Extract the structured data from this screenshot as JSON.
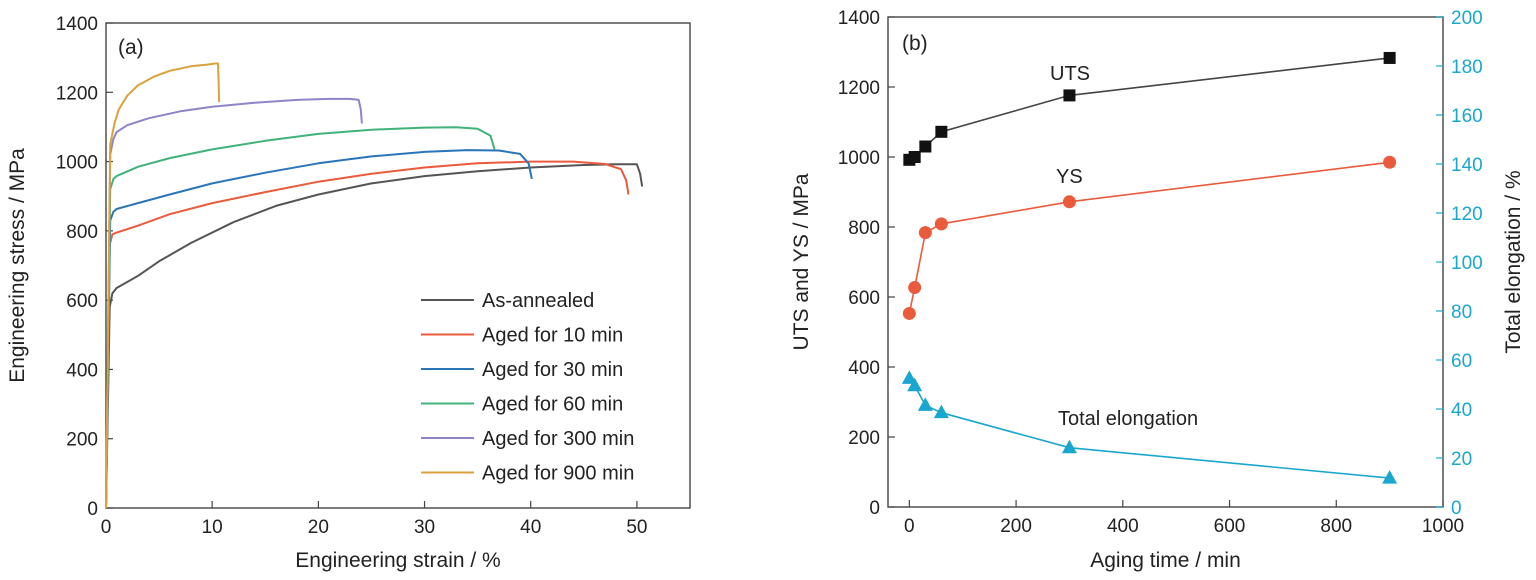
{
  "colors": {
    "as_annealed": "#555555",
    "aged_10": "#ea5a3c",
    "aged_30": "#2a74b8",
    "aged_60": "#3fb37a",
    "aged_300": "#8f84c7",
    "aged_900": "#d9a23a",
    "uts": "#444444",
    "ys": "#ea5a3c",
    "elongation": "#1aa7cf"
  },
  "chart_data": [
    {
      "panel_label": "(a)",
      "type": "line",
      "xlabel": "Engineering strain / %",
      "ylabel": "Engineering stress / MPa",
      "xlim": [
        0,
        55
      ],
      "ylim": [
        0,
        1400
      ],
      "xticks": [
        0,
        10,
        20,
        30,
        40,
        50
      ],
      "yticks": [
        0,
        200,
        400,
        600,
        800,
        1000,
        1200,
        1400
      ],
      "legend_position": "bottom-right",
      "series": [
        {
          "name": "As-annealed",
          "color_key": "as_annealed",
          "x": [
            0,
            0.35,
            0.6,
            1,
            3,
            5,
            8,
            12,
            16,
            20,
            25,
            30,
            35,
            40,
            45,
            48,
            50,
            50.3,
            50.5
          ],
          "y": [
            0,
            580,
            620,
            635,
            670,
            712,
            765,
            825,
            872,
            905,
            937,
            958,
            972,
            983,
            990,
            992,
            992,
            965,
            928
          ]
        },
        {
          "name": "Aged for 10 min",
          "color_key": "aged_10",
          "x": [
            0,
            0.35,
            0.6,
            1,
            3,
            6,
            10,
            15,
            20,
            25,
            30,
            35,
            40,
            44,
            47,
            48.5,
            49,
            49.2
          ],
          "y": [
            0,
            760,
            790,
            795,
            815,
            848,
            880,
            912,
            942,
            965,
            983,
            995,
            1000,
            1000,
            993,
            978,
            945,
            905
          ]
        },
        {
          "name": "Aged for 30 min",
          "color_key": "aged_30",
          "x": [
            0,
            0.4,
            0.7,
            1,
            3,
            6,
            10,
            15,
            20,
            25,
            30,
            34,
            37,
            39,
            39.8,
            40.1
          ],
          "y": [
            0,
            830,
            855,
            863,
            880,
            905,
            937,
            968,
            995,
            1015,
            1028,
            1033,
            1032,
            1022,
            995,
            950
          ]
        },
        {
          "name": "Aged for 60 min",
          "color_key": "aged_60",
          "x": [
            0,
            0.4,
            0.7,
            1,
            3,
            6,
            10,
            15,
            20,
            25,
            30,
            33,
            35,
            36.2,
            36.6
          ],
          "y": [
            0,
            920,
            950,
            958,
            985,
            1010,
            1035,
            1060,
            1080,
            1092,
            1098,
            1099,
            1095,
            1075,
            1035
          ]
        },
        {
          "name": "Aged for 300 min",
          "color_key": "aged_300",
          "x": [
            0,
            0.4,
            0.7,
            1,
            2,
            4,
            7,
            10,
            14,
            18,
            21,
            23,
            23.8,
            24,
            24.1
          ],
          "y": [
            0,
            1020,
            1065,
            1085,
            1105,
            1125,
            1145,
            1158,
            1170,
            1178,
            1181,
            1181,
            1178,
            1150,
            1110
          ]
        },
        {
          "name": "Aged for 900 min",
          "color_key": "aged_900",
          "x": [
            0,
            0.4,
            0.8,
            1.2,
            2,
            3,
            4.5,
            6,
            8,
            9.5,
            10.3,
            10.55,
            10.6,
            10.65
          ],
          "y": [
            0,
            1050,
            1110,
            1150,
            1190,
            1220,
            1245,
            1262,
            1275,
            1280,
            1283,
            1283,
            1230,
            1172
          ]
        }
      ]
    },
    {
      "panel_label": "(b)",
      "type": "line",
      "xlabel": "Aging time / min",
      "ylabel": "UTS and YS / MPa",
      "ylabel_right": "Total elongation / %",
      "xlim": [
        -40,
        1000
      ],
      "ylim": [
        0,
        1400
      ],
      "ylim_right": [
        0,
        200
      ],
      "xticks": [
        0,
        200,
        400,
        600,
        800,
        1000
      ],
      "yticks": [
        0,
        200,
        400,
        600,
        800,
        1000,
        1200,
        1400
      ],
      "yticks_right": [
        0,
        20,
        40,
        60,
        80,
        100,
        120,
        140,
        160,
        180,
        200
      ],
      "series": [
        {
          "name": "UTS",
          "axis": "left",
          "marker": "square",
          "color_key": "uts",
          "x": [
            0,
            10,
            30,
            60,
            300,
            900
          ],
          "y": [
            992,
            1000,
            1030,
            1072,
            1176,
            1283
          ]
        },
        {
          "name": "YS",
          "axis": "left",
          "marker": "circle",
          "color_key": "ys",
          "x": [
            0,
            10,
            30,
            60,
            300,
            900
          ],
          "y": [
            553,
            627,
            784,
            809,
            872,
            985
          ]
        },
        {
          "name": "Total elongation",
          "axis": "right",
          "marker": "triangle",
          "color_key": "elongation",
          "x": [
            0,
            10,
            30,
            60,
            300,
            900
          ],
          "y": [
            52.5,
            49.5,
            41.5,
            38.5,
            24.2,
            11.8
          ]
        }
      ]
    }
  ]
}
